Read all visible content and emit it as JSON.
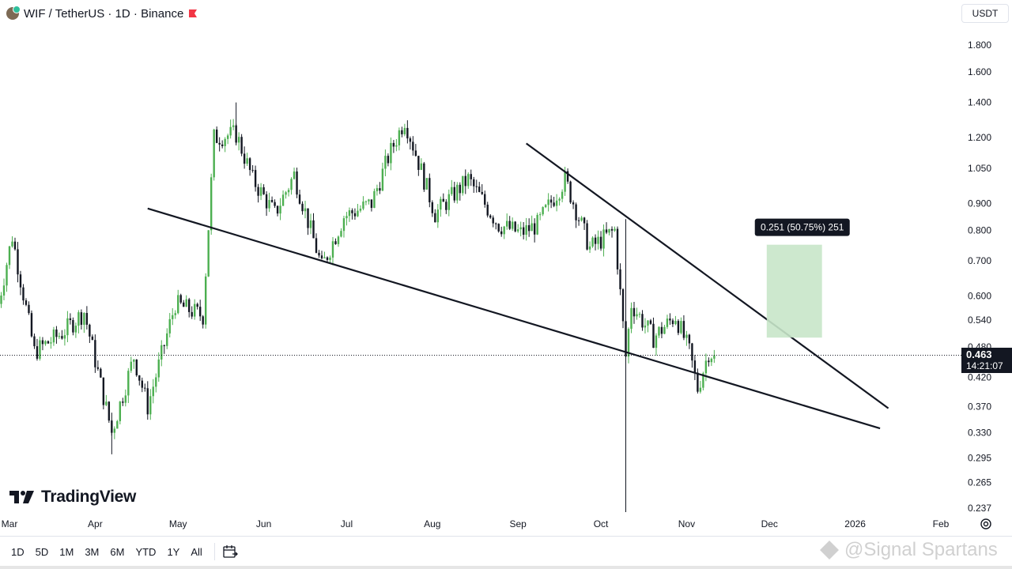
{
  "header": {
    "symbol": "WIF",
    "pair_title": "WIF / TetherUS · 1D · Binance"
  },
  "currency": {
    "label": "USDT"
  },
  "price_axis": {
    "ticks": [
      "1.800",
      "1.600",
      "1.400",
      "1.200",
      "1.050",
      "0.900",
      "0.800",
      "0.700",
      "0.600",
      "0.540",
      "0.480",
      "0.420",
      "0.370",
      "0.330",
      "0.295",
      "0.265",
      "0.237"
    ]
  },
  "time_axis": {
    "ticks": [
      "Mar",
      "Apr",
      "May",
      "Jun",
      "Jul",
      "Aug",
      "Sep",
      "Oct",
      "Nov",
      "Dec",
      "2026",
      "Feb"
    ]
  },
  "current_price": {
    "price": "0.463",
    "countdown": "14:21:07"
  },
  "measure": {
    "label": "0.251 (50.75%) 251"
  },
  "logo": {
    "text": "TradingView"
  },
  "ranges": [
    "1D",
    "5D",
    "1M",
    "3M",
    "6M",
    "YTD",
    "1Y",
    "All"
  ],
  "watermark": {
    "text": "@Signal Spartans"
  },
  "colors": {
    "up": "#26a69a",
    "up_light": "#4caf50",
    "down": "#131722",
    "zone": "#c8e6c9"
  },
  "chart_data": {
    "type": "candlestick",
    "title": "WIF / TetherUS · 1D · Binance",
    "y_scale": "log",
    "ylim": [
      0.22,
      2.0
    ],
    "x_range": [
      "2025-02-25",
      "2026-02-15"
    ],
    "candles_summary": {
      "high": 1.4,
      "low": 0.3,
      "last": 0.463
    },
    "anchors": [
      {
        "date": "2025-02-25",
        "close": 0.58
      },
      {
        "date": "2025-03-02",
        "close": 0.78
      },
      {
        "date": "2025-03-10",
        "close": 0.47
      },
      {
        "date": "2025-03-20",
        "close": 0.51
      },
      {
        "date": "2025-03-28",
        "close": 0.56
      },
      {
        "date": "2025-04-07",
        "close": 0.33
      },
      {
        "date": "2025-04-15",
        "close": 0.46
      },
      {
        "date": "2025-04-20",
        "close": 0.37
      },
      {
        "date": "2025-04-30",
        "close": 0.58
      },
      {
        "date": "2025-05-10",
        "close": 0.55
      },
      {
        "date": "2025-05-14",
        "close": 1.2
      },
      {
        "date": "2025-05-22",
        "close": 1.22
      },
      {
        "date": "2025-05-28",
        "close": 1.0
      },
      {
        "date": "2025-06-05",
        "close": 0.86
      },
      {
        "date": "2025-06-12",
        "close": 1.02
      },
      {
        "date": "2025-06-22",
        "close": 0.68
      },
      {
        "date": "2025-06-30",
        "close": 0.85
      },
      {
        "date": "2025-07-10",
        "close": 0.9
      },
      {
        "date": "2025-07-16",
        "close": 1.1
      },
      {
        "date": "2025-07-22",
        "close": 1.3
      },
      {
        "date": "2025-08-02",
        "close": 0.86
      },
      {
        "date": "2025-08-14",
        "close": 1.0
      },
      {
        "date": "2025-08-25",
        "close": 0.82
      },
      {
        "date": "2025-09-02",
        "close": 0.79
      },
      {
        "date": "2025-09-08",
        "close": 0.82
      },
      {
        "date": "2025-09-18",
        "close": 1.0
      },
      {
        "date": "2025-09-27",
        "close": 0.74
      },
      {
        "date": "2025-10-06",
        "close": 0.8
      },
      {
        "date": "2025-10-10",
        "close": 0.46
      },
      {
        "date": "2025-10-12",
        "close": 0.58
      },
      {
        "date": "2025-10-20",
        "close": 0.5
      },
      {
        "date": "2025-10-28",
        "close": 0.55
      },
      {
        "date": "2025-11-02",
        "close": 0.47
      },
      {
        "date": "2025-11-05",
        "close": 0.4
      },
      {
        "date": "2025-11-09",
        "close": 0.47
      },
      {
        "date": "2025-11-11",
        "close": 0.463
      }
    ],
    "trendlines": [
      {
        "from": {
          "date": "2025-04-20",
          "price": 0.88
        },
        "to": {
          "date": "2026-01-10",
          "price": 0.336
        }
      },
      {
        "from": {
          "date": "2025-09-04",
          "price": 1.17
        },
        "to": {
          "date": "2026-01-13",
          "price": 0.367
        }
      }
    ],
    "target_zone": {
      "from_date": "2025-11-30",
      "to_date": "2025-12-20",
      "low": 0.5,
      "high": 0.751
    },
    "measure_label": "0.251 (50.75%) 251"
  }
}
